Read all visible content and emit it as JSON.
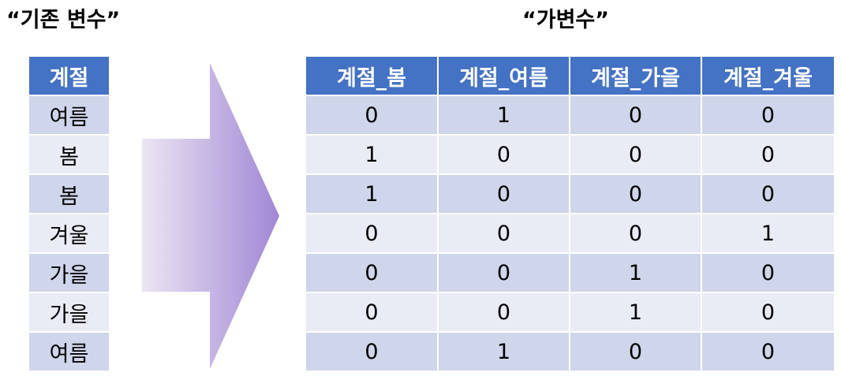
{
  "titles": {
    "original": "“기존 변수”",
    "dummy": "“가변수”"
  },
  "original_table": {
    "header": "계절",
    "rows": [
      "여름",
      "봄",
      "봄",
      "겨울",
      "가을",
      "가을",
      "여름"
    ]
  },
  "dummy_table": {
    "headers": [
      "계절_봄",
      "계절_여름",
      "계절_가을",
      "계절_겨울"
    ],
    "rows": [
      [
        "0",
        "1",
        "0",
        "0"
      ],
      [
        "1",
        "0",
        "0",
        "0"
      ],
      [
        "1",
        "0",
        "0",
        "0"
      ],
      [
        "0",
        "0",
        "0",
        "1"
      ],
      [
        "0",
        "0",
        "1",
        "0"
      ],
      [
        "0",
        "0",
        "1",
        "0"
      ],
      [
        "0",
        "1",
        "0",
        "0"
      ]
    ]
  },
  "colors": {
    "header_bg": "#4472c4",
    "row_dark": "#cfd5ea",
    "row_light": "#e9ebf5",
    "arrow_gradient_start": "#e8e4f0",
    "arrow_gradient_end": "#a38ad6"
  },
  "icons": {
    "arrow": "right-arrow-icon"
  }
}
